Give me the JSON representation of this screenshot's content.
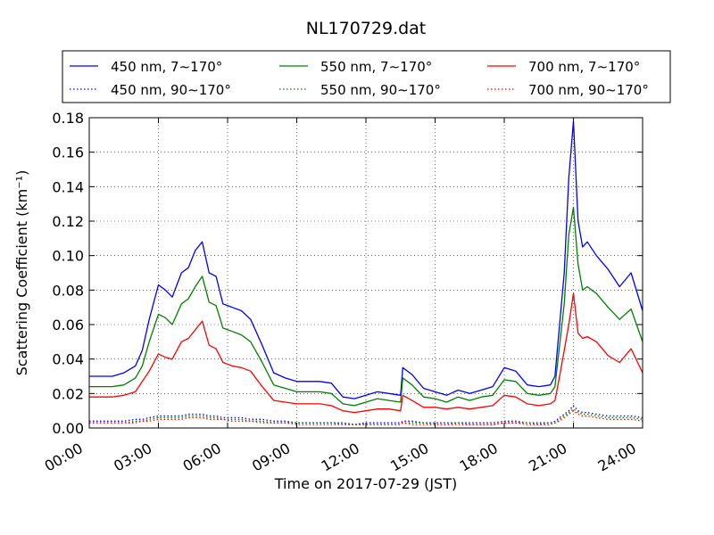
{
  "chart_data": {
    "type": "line",
    "title": "NL170729.dat",
    "xlabel": "Time on 2017-07-29 (JST)",
    "ylabel": "Scattering Coefficient (km⁻¹)",
    "xlim": [
      0,
      24
    ],
    "ylim": [
      0,
      0.18
    ],
    "x_ticks": [
      "00:00",
      "03:00",
      "06:00",
      "09:00",
      "12:00",
      "15:00",
      "18:00",
      "21:00",
      "24:00"
    ],
    "y_ticks": [
      "0.00",
      "0.02",
      "0.04",
      "0.06",
      "0.08",
      "0.10",
      "0.12",
      "0.14",
      "0.16",
      "0.18"
    ],
    "grid": true,
    "legend_position": "top",
    "x": [
      0,
      1,
      1.5,
      2,
      2.3,
      2.6,
      3,
      3.3,
      3.6,
      4,
      4.3,
      4.6,
      4.9,
      5.2,
      5.5,
      5.8,
      6.2,
      6.6,
      7,
      7.5,
      8,
      8.5,
      9,
      10,
      10.5,
      11,
      11.5,
      12,
      12.5,
      13,
      13.5,
      13.6,
      14,
      14.5,
      15,
      15.5,
      16,
      16.5,
      17,
      17.5,
      18,
      18.5,
      19,
      19.5,
      20,
      20.2,
      20.4,
      20.6,
      20.8,
      21,
      21.2,
      21.4,
      21.6,
      22,
      22.5,
      23,
      23.5,
      24
    ],
    "series": [
      {
        "name": "450 nm, 7∼170°",
        "color": "#0000ff",
        "style": "solid",
        "values": [
          0.03,
          0.03,
          0.032,
          0.036,
          0.045,
          0.063,
          0.083,
          0.08,
          0.076,
          0.09,
          0.093,
          0.103,
          0.108,
          0.09,
          0.088,
          0.072,
          0.07,
          0.068,
          0.063,
          0.048,
          0.032,
          0.029,
          0.027,
          0.027,
          0.026,
          0.018,
          0.017,
          0.019,
          0.021,
          0.02,
          0.019,
          0.035,
          0.031,
          0.023,
          0.021,
          0.019,
          0.022,
          0.02,
          0.022,
          0.024,
          0.035,
          0.033,
          0.025,
          0.024,
          0.025,
          0.03,
          0.06,
          0.09,
          0.145,
          0.178,
          0.12,
          0.105,
          0.108,
          0.1,
          0.092,
          0.082,
          0.09,
          0.068
        ]
      },
      {
        "name": "450 nm, 90∼170°",
        "color": "#0000ff",
        "style": "dotted",
        "values": [
          0.004,
          0.004,
          0.004,
          0.005,
          0.005,
          0.006,
          0.007,
          0.007,
          0.007,
          0.007,
          0.008,
          0.008,
          0.008,
          0.007,
          0.007,
          0.006,
          0.006,
          0.006,
          0.005,
          0.005,
          0.004,
          0.004,
          0.003,
          0.003,
          0.003,
          0.003,
          0.002,
          0.003,
          0.003,
          0.003,
          0.003,
          0.004,
          0.004,
          0.003,
          0.003,
          0.003,
          0.003,
          0.003,
          0.003,
          0.003,
          0.004,
          0.004,
          0.003,
          0.003,
          0.003,
          0.004,
          0.006,
          0.008,
          0.01,
          0.013,
          0.01,
          0.009,
          0.009,
          0.008,
          0.007,
          0.007,
          0.007,
          0.006
        ]
      },
      {
        "name": "550 nm, 7∼170°",
        "color": "#008000",
        "style": "solid",
        "values": [
          0.024,
          0.024,
          0.025,
          0.029,
          0.036,
          0.05,
          0.066,
          0.064,
          0.06,
          0.072,
          0.075,
          0.082,
          0.088,
          0.073,
          0.071,
          0.058,
          0.056,
          0.054,
          0.05,
          0.038,
          0.025,
          0.023,
          0.021,
          0.021,
          0.02,
          0.014,
          0.013,
          0.015,
          0.017,
          0.016,
          0.015,
          0.029,
          0.025,
          0.018,
          0.017,
          0.015,
          0.018,
          0.016,
          0.018,
          0.019,
          0.028,
          0.027,
          0.02,
          0.019,
          0.02,
          0.024,
          0.048,
          0.072,
          0.112,
          0.128,
          0.095,
          0.08,
          0.082,
          0.078,
          0.07,
          0.063,
          0.069,
          0.05
        ]
      },
      {
        "name": "550 nm, 90∼170°",
        "color": "#008000",
        "style": "dotted",
        "values": [
          0.003,
          0.003,
          0.003,
          0.004,
          0.004,
          0.005,
          0.006,
          0.006,
          0.006,
          0.006,
          0.007,
          0.007,
          0.007,
          0.006,
          0.006,
          0.005,
          0.005,
          0.005,
          0.004,
          0.004,
          0.003,
          0.003,
          0.003,
          0.003,
          0.003,
          0.002,
          0.002,
          0.002,
          0.002,
          0.002,
          0.002,
          0.003,
          0.003,
          0.003,
          0.002,
          0.002,
          0.003,
          0.002,
          0.002,
          0.002,
          0.003,
          0.003,
          0.003,
          0.002,
          0.003,
          0.003,
          0.005,
          0.007,
          0.009,
          0.011,
          0.009,
          0.008,
          0.008,
          0.007,
          0.006,
          0.006,
          0.006,
          0.005
        ]
      },
      {
        "name": "700 nm, 7∼170°",
        "color": "#ff0000",
        "style": "solid",
        "values": [
          0.018,
          0.018,
          0.019,
          0.021,
          0.027,
          0.033,
          0.043,
          0.041,
          0.04,
          0.05,
          0.052,
          0.057,
          0.062,
          0.048,
          0.046,
          0.038,
          0.036,
          0.035,
          0.033,
          0.024,
          0.016,
          0.015,
          0.014,
          0.014,
          0.013,
          0.01,
          0.009,
          0.01,
          0.011,
          0.011,
          0.01,
          0.019,
          0.016,
          0.012,
          0.012,
          0.011,
          0.012,
          0.011,
          0.012,
          0.013,
          0.019,
          0.018,
          0.014,
          0.013,
          0.014,
          0.016,
          0.03,
          0.045,
          0.06,
          0.078,
          0.055,
          0.052,
          0.053,
          0.05,
          0.042,
          0.038,
          0.046,
          0.032
        ]
      },
      {
        "name": "700 nm, 90∼170°",
        "color": "#ff0000",
        "style": "dotted",
        "values": [
          0.003,
          0.003,
          0.003,
          0.003,
          0.004,
          0.004,
          0.005,
          0.005,
          0.005,
          0.005,
          0.006,
          0.006,
          0.006,
          0.005,
          0.005,
          0.005,
          0.004,
          0.004,
          0.004,
          0.003,
          0.003,
          0.003,
          0.002,
          0.002,
          0.002,
          0.002,
          0.002,
          0.002,
          0.002,
          0.002,
          0.002,
          0.003,
          0.002,
          0.002,
          0.002,
          0.002,
          0.002,
          0.002,
          0.002,
          0.002,
          0.003,
          0.003,
          0.002,
          0.002,
          0.002,
          0.003,
          0.004,
          0.006,
          0.008,
          0.01,
          0.008,
          0.007,
          0.007,
          0.006,
          0.005,
          0.005,
          0.005,
          0.004
        ]
      }
    ]
  }
}
